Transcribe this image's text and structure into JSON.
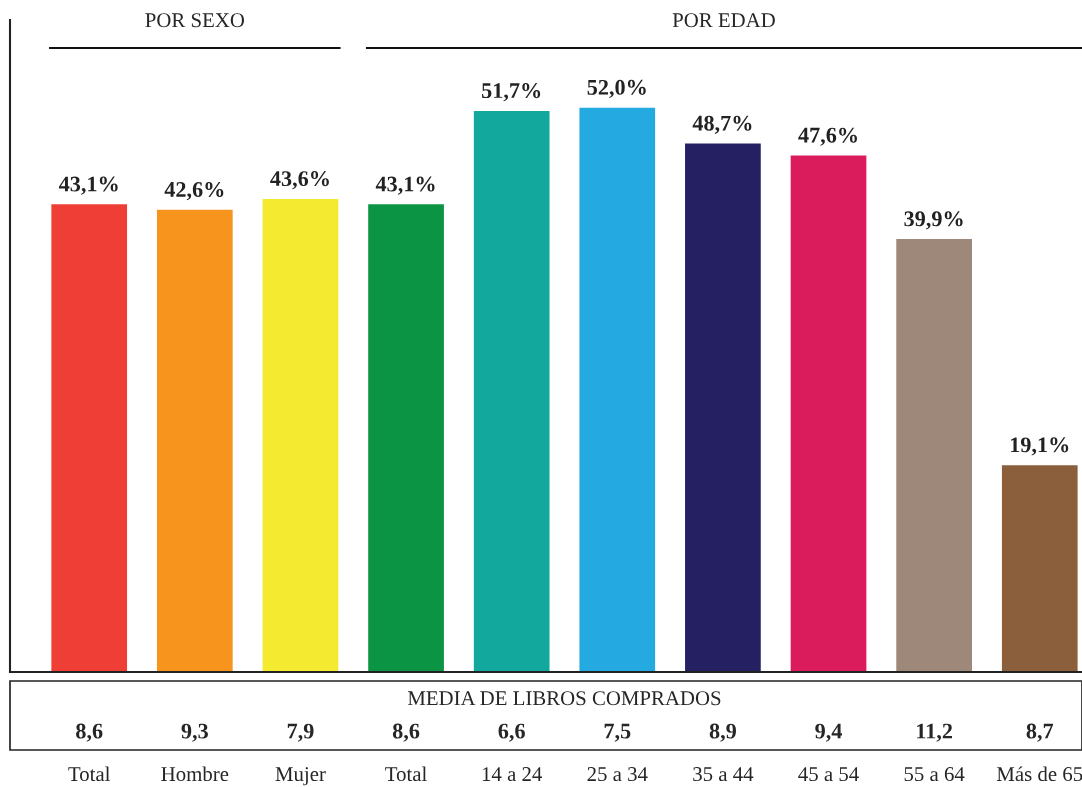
{
  "chart_data": {
    "type": "bar",
    "categories": [
      "Total",
      "Hombre",
      "Mujer",
      "Total",
      "14 a 24",
      "25 a 34",
      "35 a 44",
      "45 a 54",
      "55 a 64",
      "Más de 65"
    ],
    "values": [
      43.1,
      42.6,
      43.6,
      43.1,
      51.7,
      52.0,
      48.7,
      47.6,
      39.9,
      19.1
    ],
    "colors": [
      "#ee3e35",
      "#f7941d",
      "#f4ea2f",
      "#0c9445",
      "#12a89d",
      "#24a9e1",
      "#242062",
      "#da1c5c",
      "#9d887a",
      "#8b5e3c"
    ],
    "value_labels": [
      "43,1%",
      "42,6%",
      "43,6%",
      "43,1%",
      "51,7%",
      "52,0%",
      "48,7%",
      "47,6%",
      "39,9%",
      "19,1%"
    ],
    "ylim": [
      0,
      60
    ],
    "grid": false,
    "legend": false,
    "annotations": [
      "POR SEXO",
      "POR EDAD",
      "MEDIA DE LIBROS COMPRADOS",
      "8,6",
      "9,3",
      "7,9",
      "8,6",
      "6,6",
      "7,5",
      "8,9",
      "9,4",
      "11,2",
      "8,7"
    ]
  }
}
